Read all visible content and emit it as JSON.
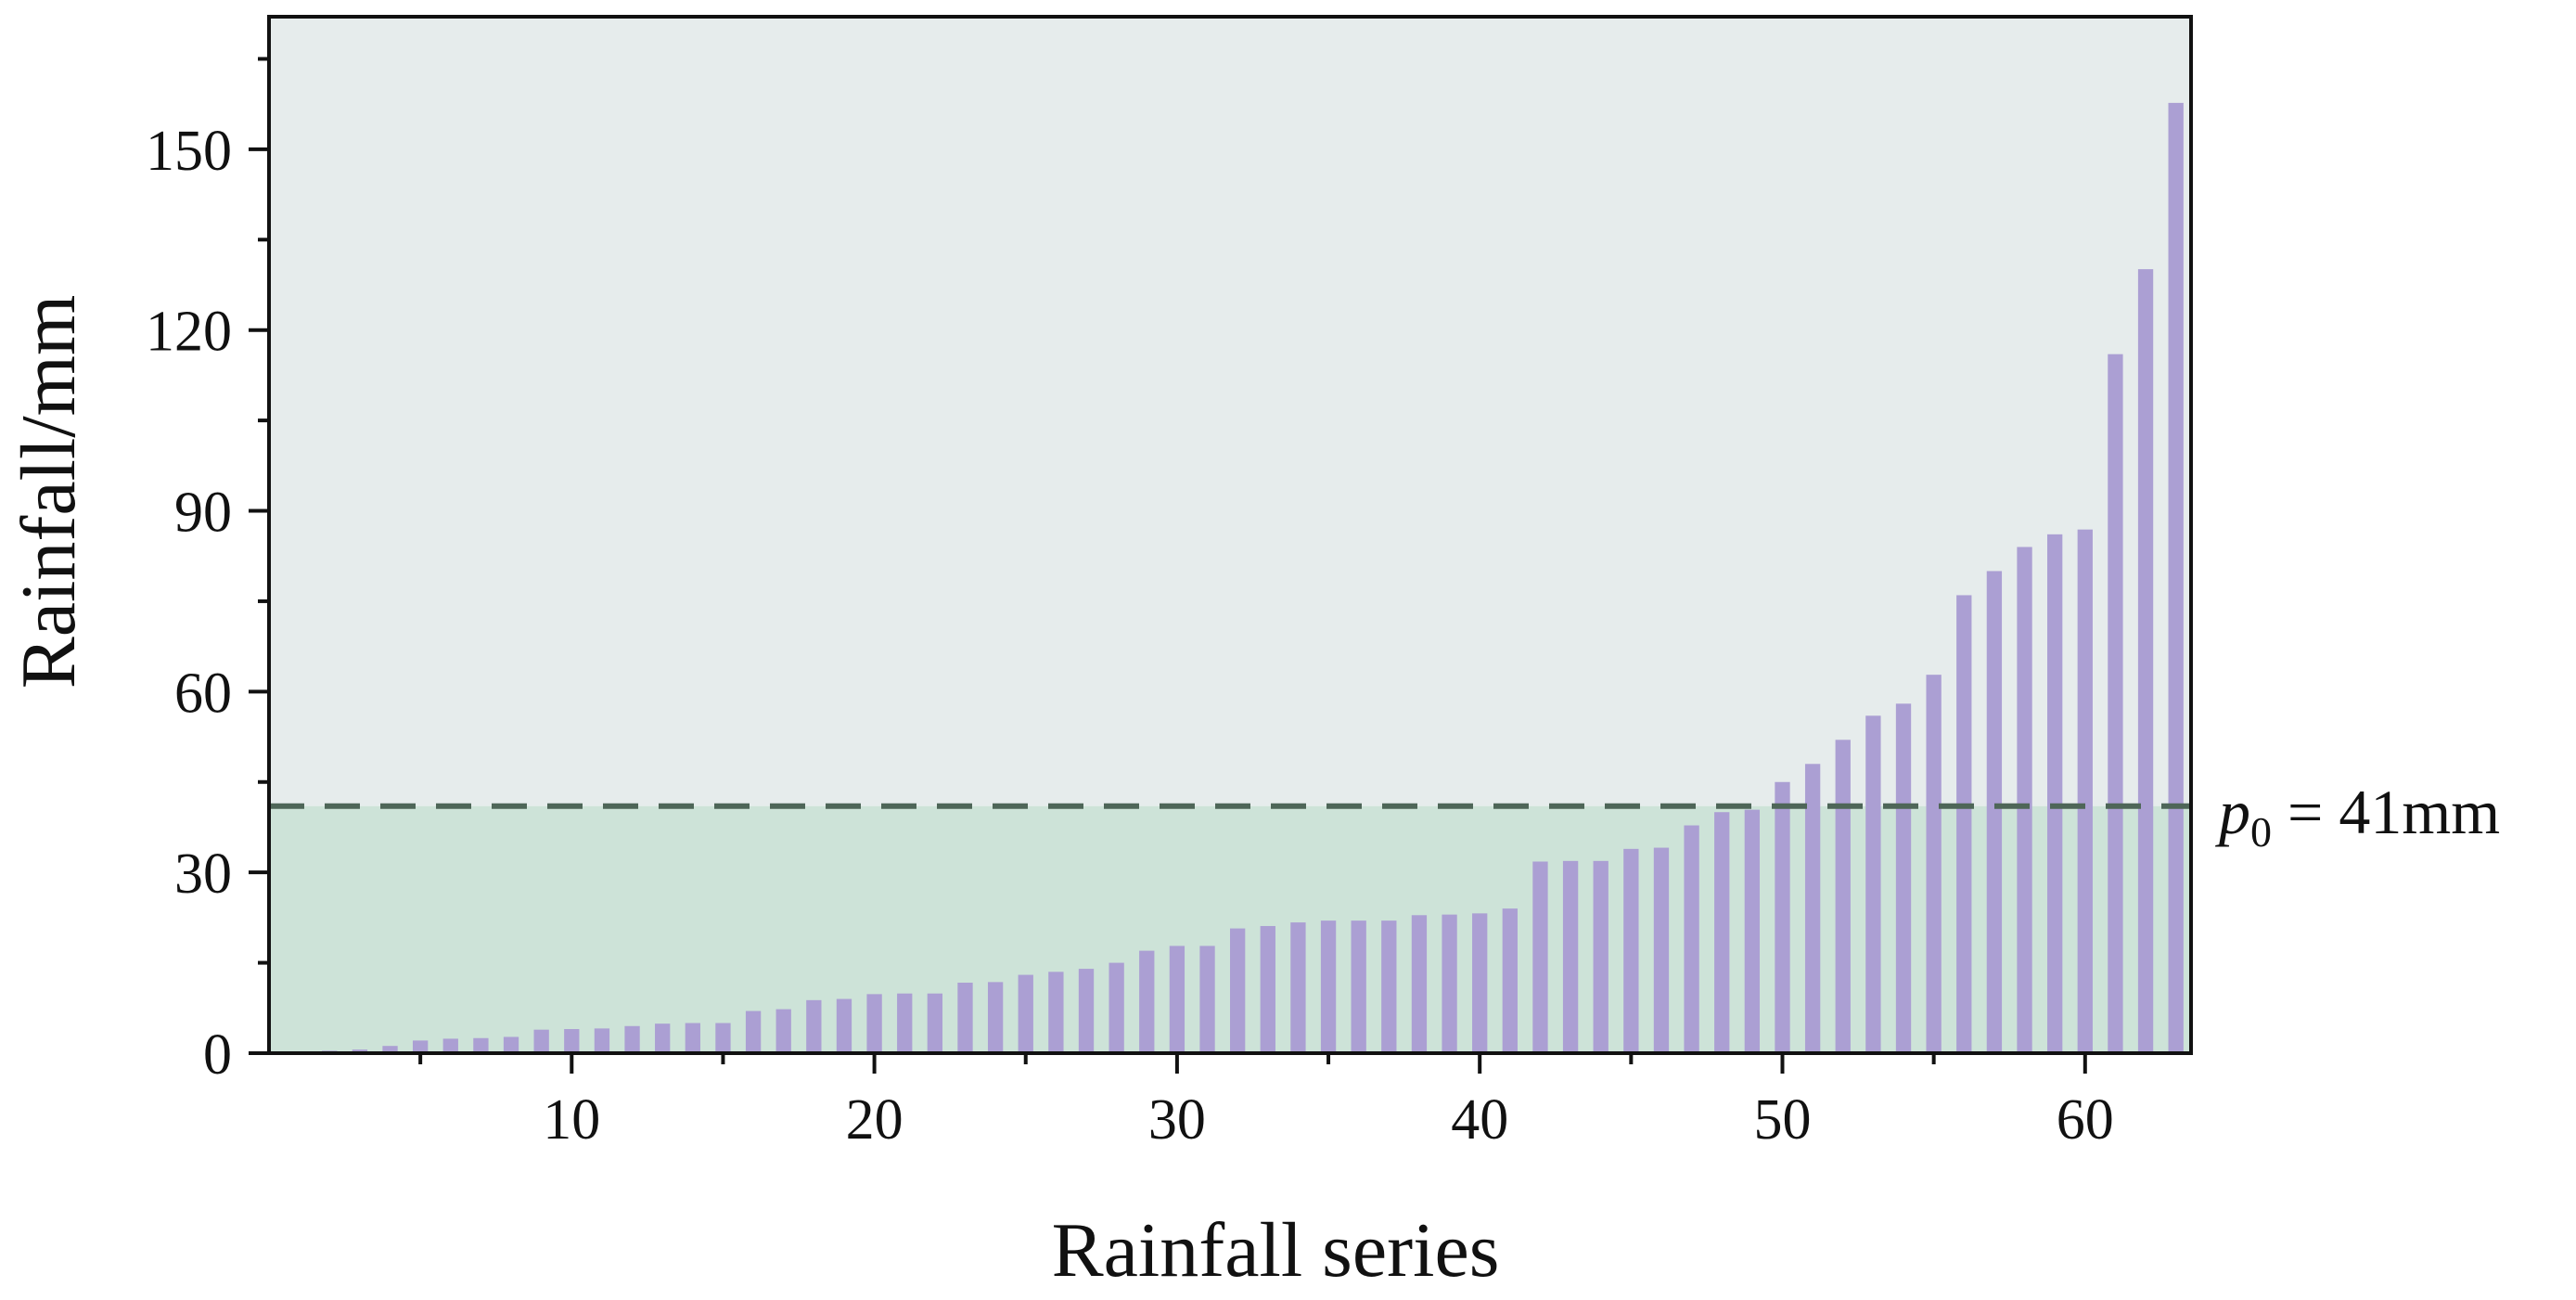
{
  "chart_data": {
    "type": "bar",
    "title": "",
    "xlabel": "Rainfall series",
    "ylabel": "Rainfall/mm",
    "xlim": [
      0,
      63.5
    ],
    "ylim": [
      0,
      172
    ],
    "x_ticks": [
      10,
      20,
      30,
      40,
      50,
      60
    ],
    "y_ticks": [
      0,
      30,
      60,
      90,
      120,
      150
    ],
    "grid": false,
    "legend": "none",
    "threshold": {
      "value": 41,
      "label_prefix": "p",
      "label_subscript": "0",
      "label_suffix": " = 41mm"
    },
    "colors": {
      "bar": "#ab9fd3",
      "background_upper": "#e6ecec",
      "background_lower": "#cde3d8",
      "threshold_line": "#4e6658",
      "axis": "#111111"
    },
    "series": [
      {
        "values": [
          0.2,
          0.4,
          0.6,
          1.2,
          2.1,
          2.4,
          2.5,
          2.7,
          3.9,
          4.0,
          4.1,
          4.5,
          4.9,
          5.0,
          5.0,
          7.0,
          7.3,
          8.8,
          9.0,
          9.8,
          9.9,
          9.9,
          11.7,
          11.8,
          13.0,
          13.5,
          14.0,
          15.0,
          17.0,
          17.8,
          17.8,
          20.7,
          21.1,
          21.7,
          22.0,
          22.0,
          22.0,
          22.9,
          23.0,
          23.2,
          24.0,
          31.8,
          31.9,
          31.9,
          33.9,
          34.1,
          37.8,
          40.0,
          40.4,
          45.0,
          48.0,
          52.0,
          56.0,
          58.0,
          62.8,
          76.0,
          80.0,
          84.0,
          86.1,
          86.9,
          116.0,
          130.1,
          157.7
        ]
      }
    ]
  }
}
